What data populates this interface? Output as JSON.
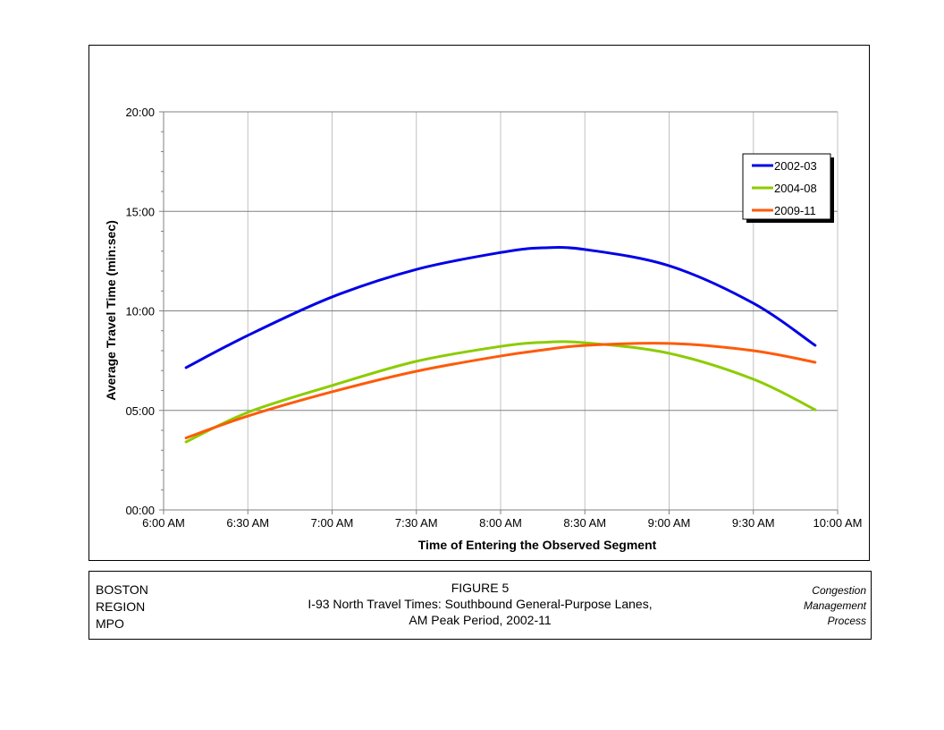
{
  "chart_data": {
    "type": "line",
    "title": "",
    "xlabel": "Time of Entering the Observed Segment",
    "ylabel": "Average Travel Time (min:sec)",
    "x_ticks": [
      "6:00 AM",
      "6:30 AM",
      "7:00 AM",
      "7:30 AM",
      "8:00 AM",
      "8:30 AM",
      "9:00 AM",
      "9:30 AM",
      "10:00 AM"
    ],
    "y_ticks": [
      "00:00",
      "05:00",
      "10:00",
      "15:00",
      "20:00"
    ],
    "xlim": [
      "6:00 AM",
      "10:00 AM"
    ],
    "ylim": [
      "00:00",
      "20:00"
    ],
    "grid": true,
    "legend_position": "top-right",
    "x": [
      "6:08 AM",
      "6:30 AM",
      "7:00 AM",
      "7:30 AM",
      "8:00 AM",
      "8:15 AM",
      "8:30 AM",
      "9:00 AM",
      "9:30 AM",
      "9:52 AM"
    ],
    "series": [
      {
        "name": "2002-03",
        "color": "#0000e6",
        "values": [
          "7:09",
          "8:46",
          "10:42",
          "12:05",
          "12:56",
          "13:10",
          "13:05",
          "12:16",
          "10:23",
          "8:16"
        ]
      },
      {
        "name": "2004-08",
        "color": "#8ccc00",
        "values": [
          "3:25",
          "4:54",
          "6:15",
          "7:28",
          "8:13",
          "8:25",
          "8:24",
          "7:52",
          "6:34",
          "5:02"
        ]
      },
      {
        "name": "2009-11",
        "color": "#ff5a0a",
        "values": [
          "3:37",
          "4:43",
          "5:56",
          "6:58",
          "7:44",
          "8:02",
          "8:16",
          "8:22",
          "8:00",
          "7:25"
        ]
      }
    ]
  },
  "footer": {
    "org": [
      "BOSTON",
      "REGION",
      "MPO"
    ],
    "figure_number": "FIGURE 5",
    "title_line1": "I-93 North Travel Times: Southbound General-Purpose Lanes,",
    "title_line2": "AM Peak Period, 2002-11",
    "process": [
      "Congestion",
      "Management",
      "Process"
    ]
  }
}
